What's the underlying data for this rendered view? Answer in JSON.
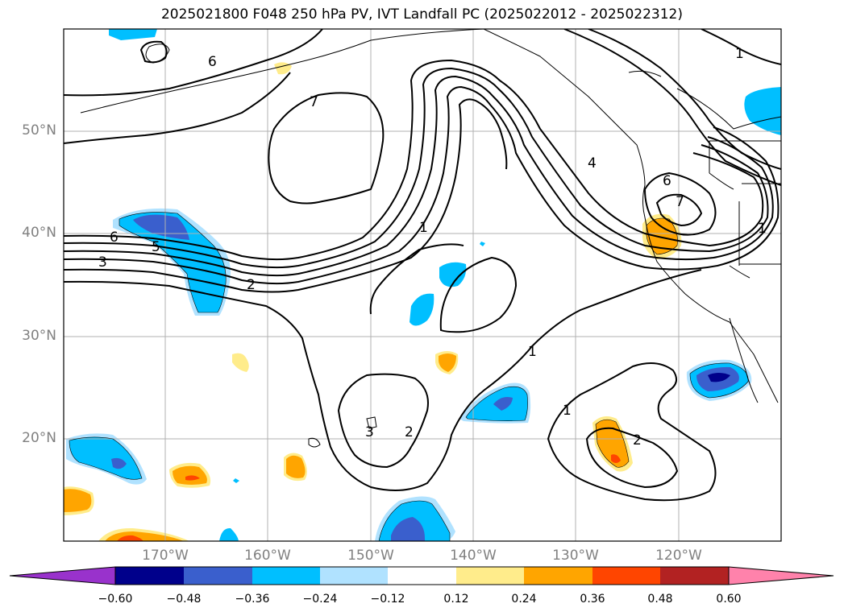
{
  "title": "2025021800 F048 250 hPa PV, IVT Landfall PC (2025022012 - 2025022312)",
  "lat_labels": [
    "50°N",
    "40°N",
    "30°N",
    "20°N"
  ],
  "lon_labels": [
    "170°W",
    "160°W",
    "150°W",
    "140°W",
    "130°W",
    "120°W"
  ],
  "colorbar": {
    "tick_labels": [
      "−0.60",
      "−0.48",
      "−0.36",
      "−0.24",
      "−0.12",
      "0.12",
      "0.24",
      "0.36",
      "0.48",
      "0.60"
    ],
    "colors": [
      "#9932cc",
      "#00008b",
      "#3a5fcd",
      "#00bfff",
      "#b0e2ff",
      "#ffffff",
      "#ffec8b",
      "#ffa500",
      "#ff4500",
      "#b22222",
      "#ff82ab"
    ]
  },
  "contour_labels": [
    "6",
    "7",
    "1",
    "6",
    "5",
    "3",
    "2",
    "1",
    "4",
    "6",
    "7",
    "1",
    "1",
    "3",
    "2",
    "1",
    "2"
  ],
  "colors": {
    "negative_light": "#b0e2ff",
    "negative_mid": "#00bfff",
    "negative_strong": "#3a5fcd",
    "negative_max": "#00008b",
    "positive_light": "#ffec8b",
    "positive_mid": "#ffa500",
    "positive_strong": "#ff4500"
  }
}
